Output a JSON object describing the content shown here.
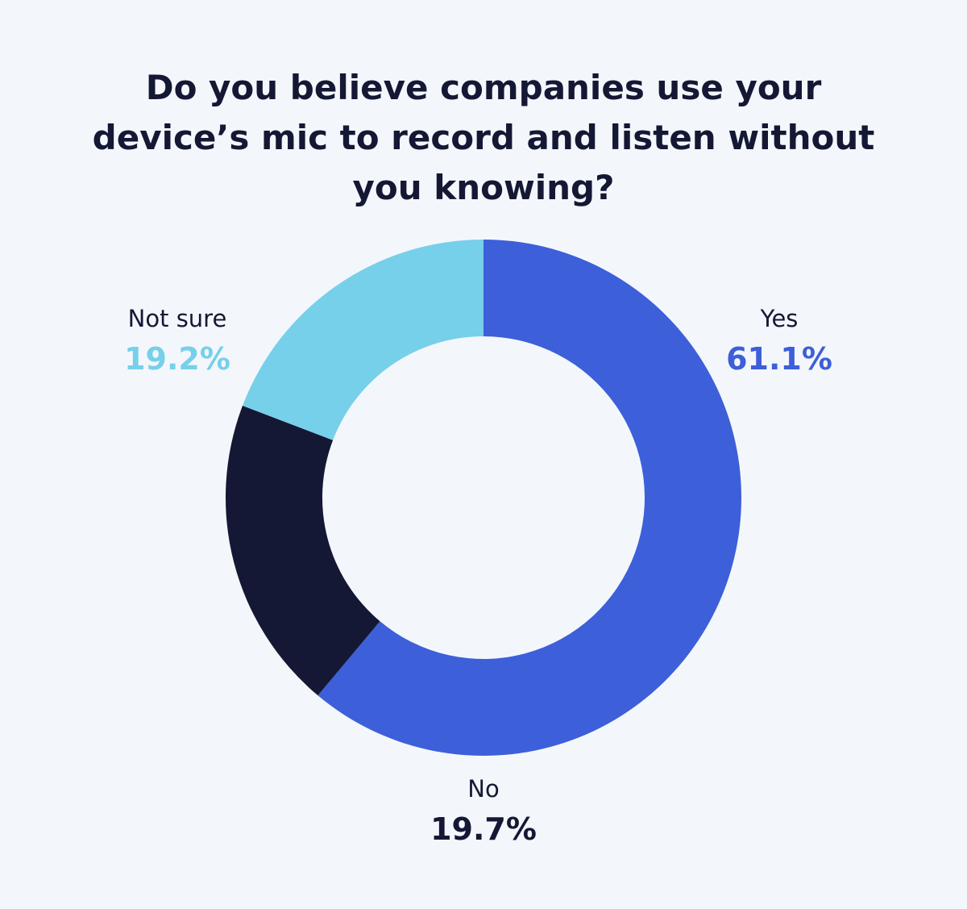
{
  "chart_data": {
    "type": "donut",
    "title": "Do you believe companies use your device’s mic to record and listen without you knowing?",
    "categories": [
      "Yes",
      "No",
      "Not sure"
    ],
    "values": [
      61.1,
      19.7,
      19.2
    ],
    "value_labels": [
      "61.1%",
      "19.7%",
      "19.2%"
    ],
    "colors": [
      "#3d5fd9",
      "#141834",
      "#76d0ea"
    ]
  }
}
